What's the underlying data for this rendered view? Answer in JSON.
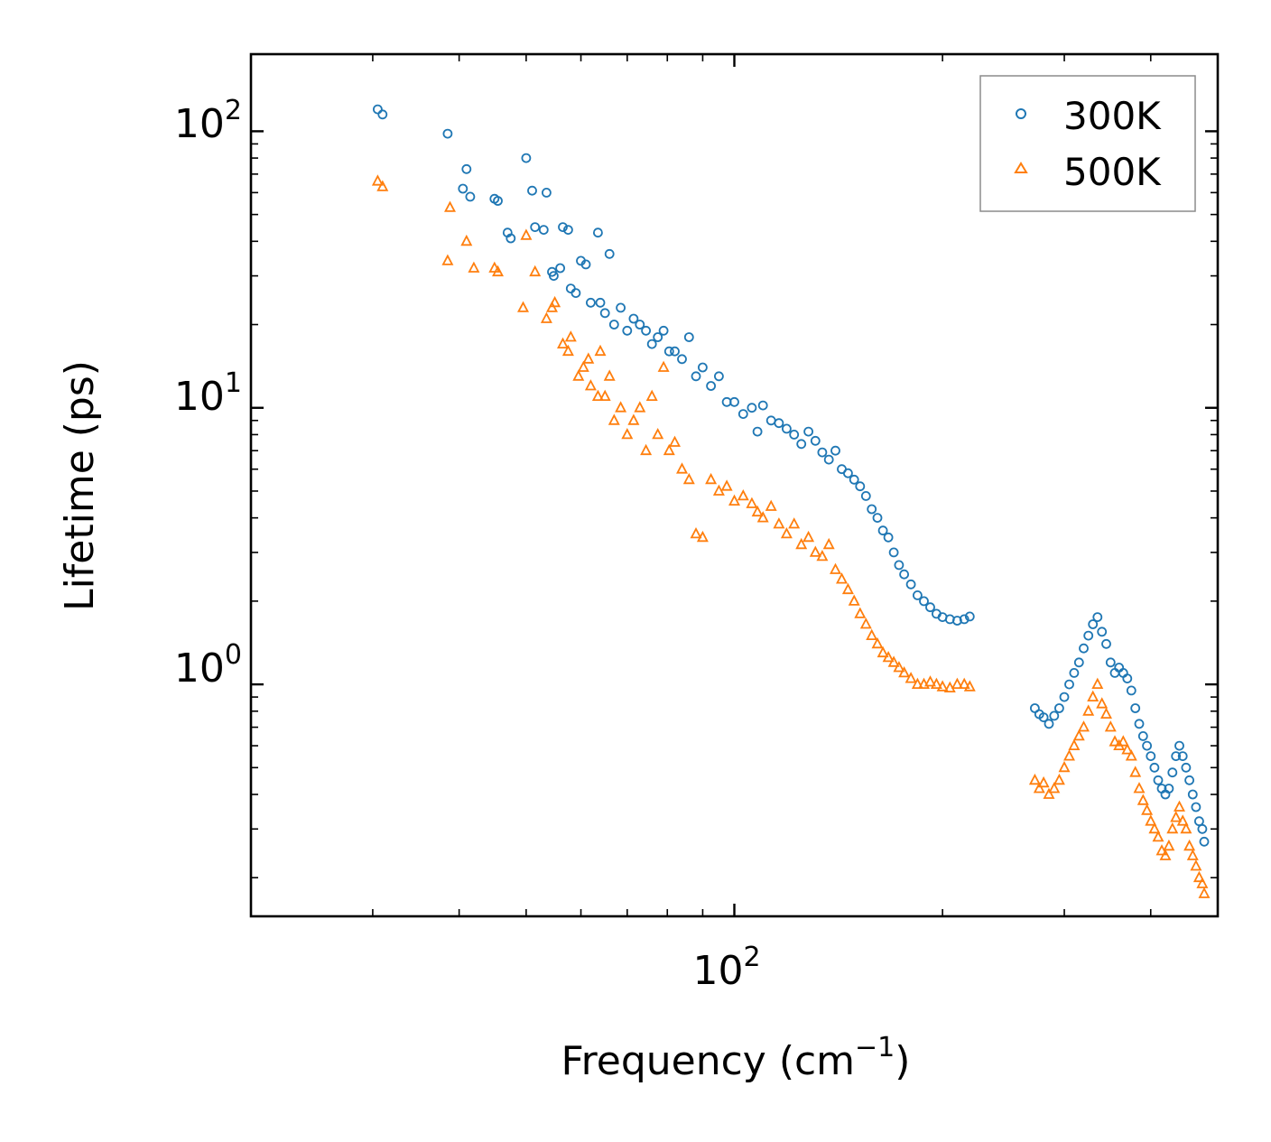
{
  "chart_data": {
    "type": "scatter",
    "title": "",
    "xlabel": "Frequency (cm",
    "xlabel_sup": "−1",
    "xlabel_end": ")",
    "ylabel": "Lifetime (ps)",
    "xscale": "log",
    "yscale": "log",
    "xlim": [
      20,
      500
    ],
    "ylim": [
      0.145,
      190
    ],
    "x_ticks": [
      {
        "value": 100,
        "base": "10",
        "exp": "2"
      }
    ],
    "y_ticks": [
      {
        "value": 100,
        "base": "10",
        "exp": "2"
      },
      {
        "value": 10,
        "base": "10",
        "exp": "1"
      },
      {
        "value": 1,
        "base": "10",
        "exp": "0"
      }
    ],
    "legend_position": "top-right",
    "series": [
      {
        "name": "300K",
        "marker": "circle",
        "color": "#1f77b4",
        "x": [
          30.5,
          31.0,
          38.5,
          40.5,
          41.0,
          41.5,
          45.0,
          45.5,
          47.0,
          47.5,
          50.0,
          51.0,
          51.5,
          53.0,
          53.5,
          54.5,
          54.8,
          56.0,
          56.5,
          57.5,
          58.0,
          59.0,
          60.0,
          61.0,
          62.0,
          63.5,
          64.0,
          65.0,
          66.0,
          67.0,
          68.5,
          70.0,
          71.5,
          73.0,
          74.5,
          76.0,
          77.5,
          79.0,
          80.5,
          82.0,
          84.0,
          86.0,
          88.0,
          90.0,
          92.5,
          95.0,
          97.5,
          100.0,
          103.0,
          106.0,
          108.0,
          110.0,
          113.0,
          116.0,
          119.0,
          122.0,
          125.0,
          128.0,
          131.0,
          134.0,
          137.0,
          140.0,
          143.0,
          146.0,
          149.0,
          152.0,
          155.0,
          158.0,
          161.0,
          164.0,
          167.0,
          170.0,
          173.0,
          176.0,
          180.0,
          184.0,
          188.0,
          192.0,
          196.0,
          200.0,
          205.0,
          210.0,
          215.0,
          219.0,
          272.0,
          276.0,
          280.0,
          285.0,
          290.0,
          295.0,
          300.0,
          305.0,
          310.0,
          315.0,
          320.0,
          325.0,
          330.0,
          335.0,
          340.0,
          345.0,
          350.0,
          355.0,
          360.0,
          365.0,
          370.0,
          375.0,
          380.0,
          385.0,
          390.0,
          395.0,
          400.0,
          405.0,
          410.0,
          415.0,
          420.0,
          425.0,
          430.0,
          435.0,
          440.0,
          445.0,
          450.0,
          455.0,
          460.0,
          465.0,
          470.0,
          475.0,
          478.0
        ],
        "y": [
          120,
          115,
          98,
          62,
          73,
          58,
          57,
          56,
          43,
          41,
          80,
          61,
          45,
          44,
          60,
          31,
          30,
          32,
          45,
          44,
          27,
          26,
          34,
          33,
          24,
          43,
          24,
          22,
          36,
          20,
          23,
          19,
          21,
          20,
          19,
          17,
          18,
          19,
          16,
          16,
          15,
          18,
          13,
          14,
          12,
          13,
          10.5,
          10.5,
          9.5,
          10.0,
          8.2,
          10.2,
          9.0,
          8.8,
          8.4,
          8.0,
          7.4,
          8.2,
          7.6,
          6.9,
          6.5,
          7.0,
          6.0,
          5.8,
          5.5,
          5.2,
          4.8,
          4.3,
          4.0,
          3.6,
          3.4,
          3.0,
          2.7,
          2.5,
          2.3,
          2.1,
          2.0,
          1.9,
          1.8,
          1.75,
          1.72,
          1.7,
          1.72,
          1.76,
          0.82,
          0.78,
          0.76,
          0.72,
          0.77,
          0.82,
          0.9,
          1.0,
          1.1,
          1.2,
          1.35,
          1.5,
          1.65,
          1.75,
          1.55,
          1.4,
          1.2,
          1.1,
          1.15,
          1.1,
          1.05,
          0.95,
          0.82,
          0.72,
          0.65,
          0.6,
          0.55,
          0.5,
          0.45,
          0.42,
          0.4,
          0.42,
          0.48,
          0.55,
          0.6,
          0.55,
          0.5,
          0.45,
          0.4,
          0.36,
          0.32,
          0.3,
          0.27
        ]
      },
      {
        "name": "500K",
        "marker": "triangle",
        "color": "#ff7f0e",
        "x": [
          30.5,
          31.0,
          38.5,
          38.8,
          41.0,
          42.0,
          45.0,
          45.5,
          49.5,
          50.0,
          51.5,
          53.5,
          54.5,
          55.0,
          56.5,
          57.5,
          58.0,
          59.5,
          60.5,
          61.5,
          62.0,
          63.5,
          64.0,
          65.0,
          66.0,
          67.0,
          68.5,
          70.0,
          71.5,
          73.0,
          74.5,
          76.0,
          77.5,
          79.0,
          80.5,
          82.0,
          84.0,
          86.0,
          88.0,
          90.0,
          92.5,
          95.0,
          97.5,
          100.0,
          103.0,
          106.0,
          108.0,
          110.0,
          113.0,
          116.0,
          119.0,
          122.0,
          125.0,
          128.0,
          131.0,
          134.0,
          137.0,
          140.0,
          143.0,
          146.0,
          149.0,
          152.0,
          155.0,
          158.0,
          161.0,
          164.0,
          167.0,
          170.0,
          173.0,
          176.0,
          180.0,
          184.0,
          188.0,
          192.0,
          196.0,
          200.0,
          205.0,
          210.0,
          215.0,
          219.0,
          272.0,
          276.0,
          280.0,
          285.0,
          290.0,
          295.0,
          300.0,
          305.0,
          310.0,
          315.0,
          320.0,
          325.0,
          330.0,
          335.0,
          340.0,
          345.0,
          350.0,
          355.0,
          360.0,
          365.0,
          370.0,
          375.0,
          380.0,
          385.0,
          390.0,
          395.0,
          400.0,
          405.0,
          410.0,
          415.0,
          420.0,
          425.0,
          430.0,
          435.0,
          440.0,
          445.0,
          450.0,
          455.0,
          460.0,
          465.0,
          470.0,
          475.0,
          478.0
        ],
        "y": [
          66,
          63,
          34,
          53,
          40,
          32,
          32,
          31,
          23,
          42,
          31,
          21,
          23,
          24,
          17,
          16,
          18,
          13,
          14,
          15,
          12,
          11,
          16,
          11,
          13,
          9,
          10,
          8,
          9,
          10,
          7,
          11,
          8,
          14,
          7,
          7.5,
          6,
          5.5,
          3.5,
          3.4,
          5.5,
          5.0,
          5.2,
          4.6,
          4.8,
          4.5,
          4.2,
          4.0,
          4.4,
          3.8,
          3.5,
          3.8,
          3.2,
          3.4,
          3.0,
          2.9,
          3.2,
          2.6,
          2.4,
          2.2,
          2.0,
          1.8,
          1.65,
          1.5,
          1.4,
          1.3,
          1.25,
          1.2,
          1.15,
          1.1,
          1.05,
          1.0,
          1.0,
          1.02,
          1.0,
          0.98,
          0.97,
          1.0,
          1.0,
          0.98,
          0.45,
          0.42,
          0.44,
          0.4,
          0.42,
          0.45,
          0.5,
          0.55,
          0.6,
          0.65,
          0.7,
          0.8,
          0.9,
          1.0,
          0.85,
          0.78,
          0.7,
          0.62,
          0.6,
          0.62,
          0.58,
          0.55,
          0.48,
          0.42,
          0.38,
          0.35,
          0.32,
          0.3,
          0.28,
          0.25,
          0.24,
          0.26,
          0.3,
          0.33,
          0.36,
          0.32,
          0.3,
          0.26,
          0.24,
          0.22,
          0.2,
          0.19,
          0.175
        ]
      }
    ]
  }
}
